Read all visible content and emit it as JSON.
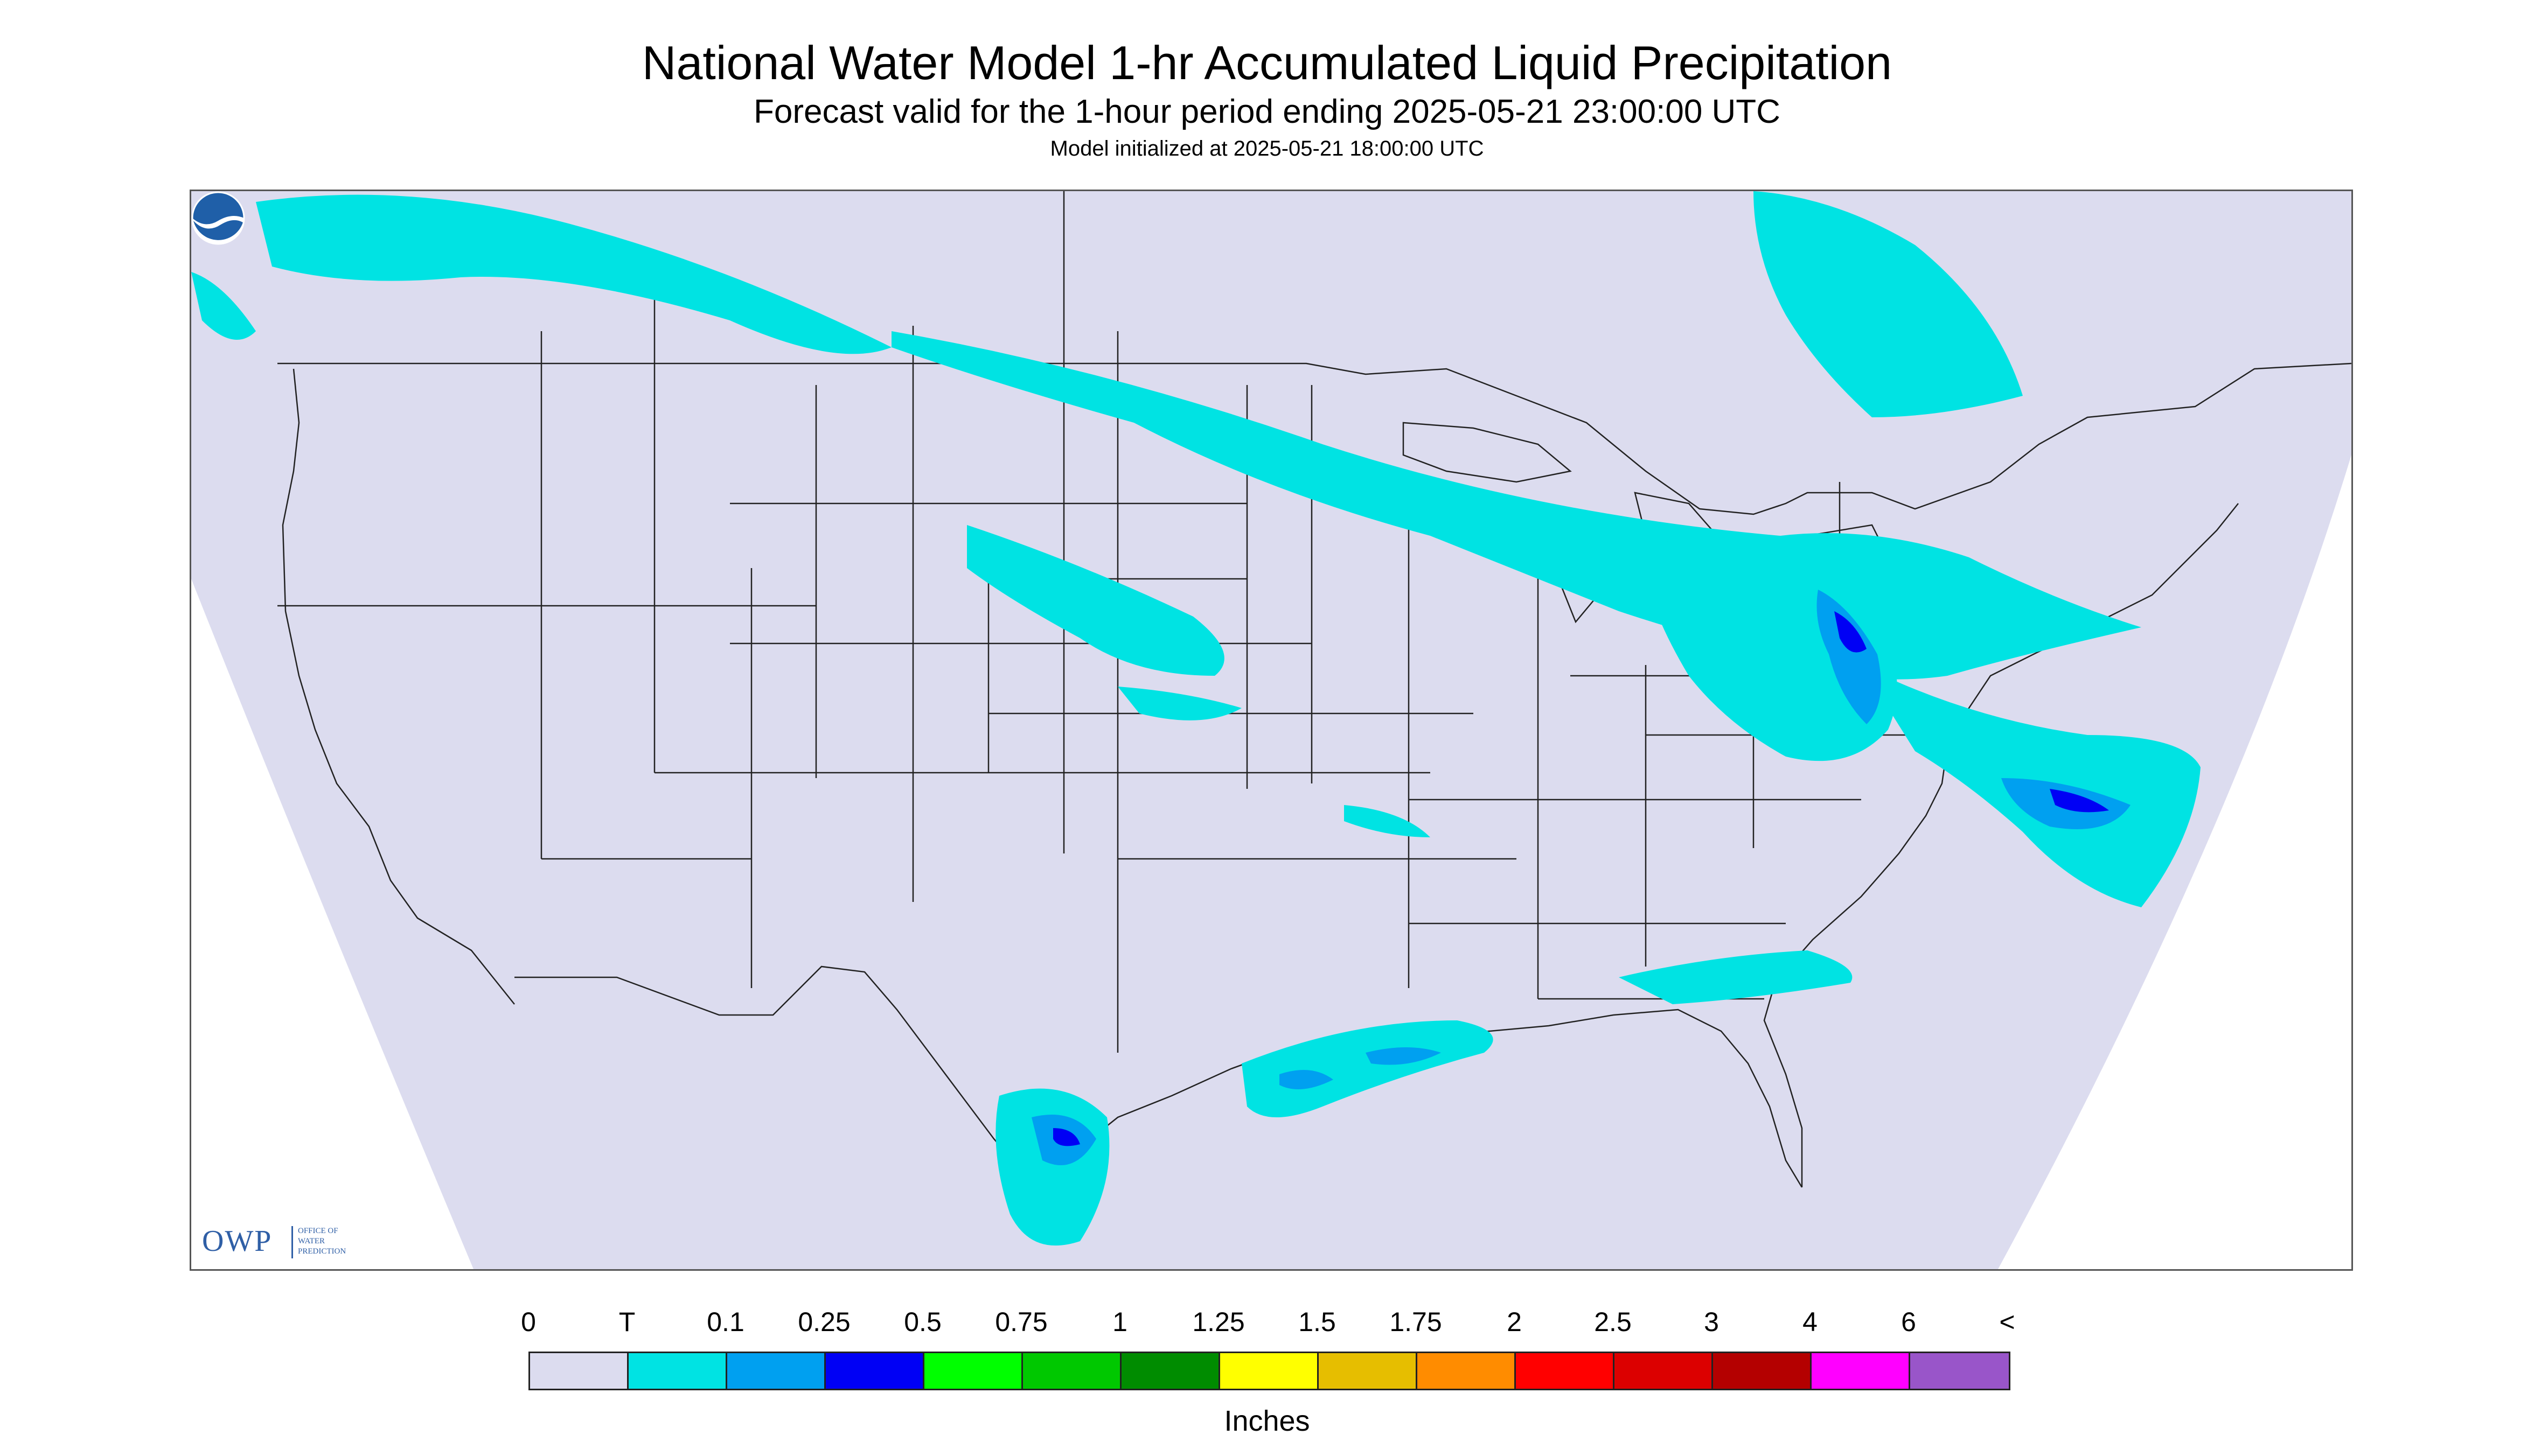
{
  "title": "National Water Model 1-hr Accumulated Liquid Precipitation",
  "subtitle": "Forecast valid for the 1-hour period ending 2025-05-21 23:00:00 UTC",
  "init_line": "Model initialized at 2025-05-21 18:00:00 UTC",
  "map": {
    "domain_color": "#dcdcef",
    "boundary_color": "#222222",
    "region": "Continental United States",
    "logos": {
      "owp": {
        "mark": "OWP",
        "text_lines": [
          "OFFICE OF",
          "WATER",
          "PREDICTION"
        ]
      },
      "noaa": {
        "icon": "noaa-logo-icon"
      }
    }
  },
  "legend": {
    "units": "Inches",
    "tick_labels": [
      "0",
      "T",
      "0.1",
      "0.25",
      "0.5",
      "0.75",
      "1",
      "1.25",
      "1.5",
      "1.75",
      "2",
      "2.5",
      "3",
      "4",
      "6",
      "<"
    ],
    "colors": [
      "#dcdcef",
      "#00e3e3",
      "#00a0f0",
      "#0000f5",
      "#00ff00",
      "#00c800",
      "#008c00",
      "#ffff00",
      "#e6be00",
      "#ff8c00",
      "#ff0000",
      "#dc0000",
      "#b40000",
      "#ff00ff",
      "#9955c9"
    ]
  }
}
